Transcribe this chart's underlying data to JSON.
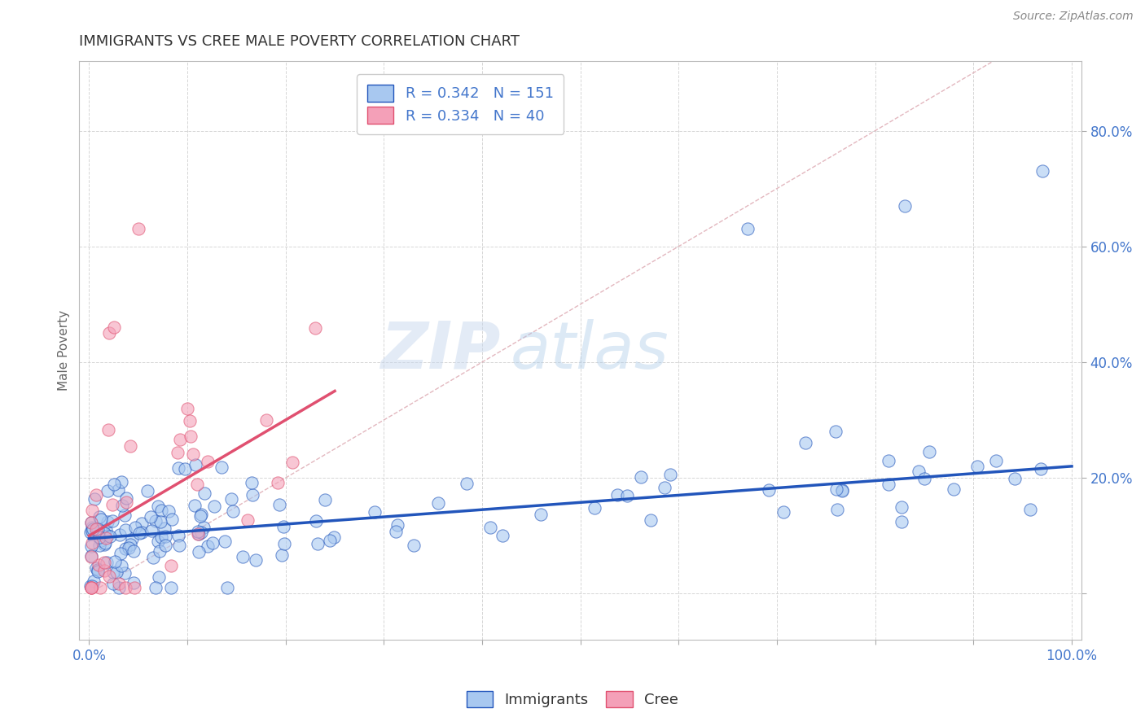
{
  "title": "IMMIGRANTS VS CREE MALE POVERTY CORRELATION CHART",
  "source_text": "Source: ZipAtlas.com",
  "ylabel": "Male Poverty",
  "immigrants_color": "#a8c8f0",
  "cree_color": "#f4a0b8",
  "immigrants_line_color": "#2255bb",
  "cree_line_color": "#e05070",
  "diag_line_color": "#e0b0b8",
  "R_immigrants": 0.342,
  "N_immigrants": 151,
  "R_cree": 0.334,
  "N_cree": 40,
  "background_color": "#ffffff",
  "grid_color": "#cccccc",
  "title_color": "#333333",
  "label_color": "#4477cc",
  "watermark_zip": "ZIP",
  "watermark_atlas": "atlas"
}
